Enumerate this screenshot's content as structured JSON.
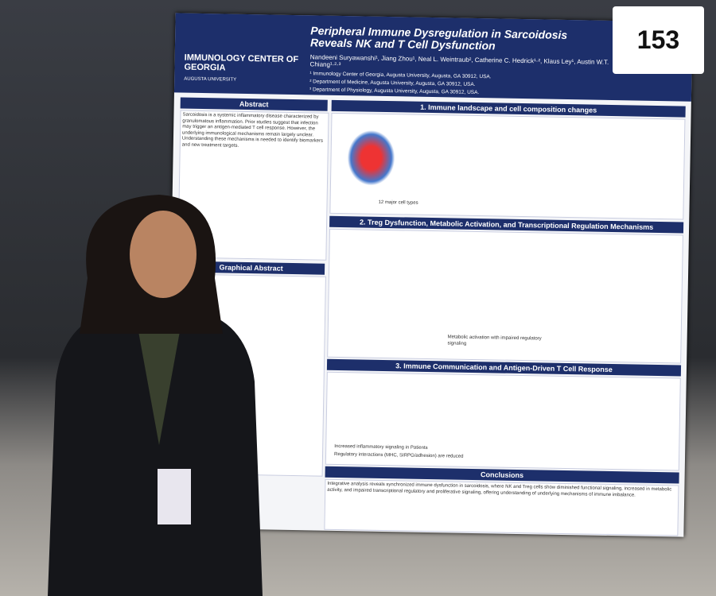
{
  "board_number": "153",
  "poster": {
    "logo": {
      "name": "IMMUNOLOGY CENTER OF GEORGIA",
      "sub": "AUGUSTA UNIVERSITY"
    },
    "title": "Peripheral Immune Dysregulation in Sarcoidosis Reveals NK and T Cell Dysfunction",
    "authors": "Nandeeni Suryawanshi¹, Jiang Zhou¹, Neal L. Weintraub², Catherine C. Hedrick¹·², Klaus Ley¹, Austin W.T. Chiang¹·²·³",
    "affiliations": [
      "¹ Immunology Center of Georgia, Augusta University, Augusta, GA 30912, USA.",
      "² Department of Medicine, Augusta University, Augusta, GA 30912, USA.",
      "³ Department of Physiology, Augusta University, Augusta, GA 30912, USA."
    ],
    "abstract_heading": "Abstract",
    "abstract_text": "Sarcoidosis is a systemic inflammatory disease characterized by granulomatous inflammation. Prior studies suggest that infection may trigger an antigen-mediated T cell response. However, the underlying immunological mechanisms remain largely unclear. Understanding these mechanisms is needed to identify biomarkers and new treatment targets.",
    "graphical_abstract_heading": "Graphical Abstract",
    "sections": [
      "1. Immune landscape and cell composition changes",
      "2. Treg Dysfunction, Metabolic Activation, and Transcriptional Regulation Mechanisms",
      "3. Immune Communication and Antigen-Driven T Cell Response"
    ],
    "notes": [
      "12 major cell types",
      "Metabolic activation with impaired regulatory signaling",
      "Increased inflammatory signaling in Patients",
      "Regulatory interactions (MHC, SIRPG/adhesion) are reduced"
    ],
    "conclusions_heading": "Conclusions",
    "conclusions_text": "Integrative analysis reveals synchronized immune dysfunction in sarcoidosis, where NK and Treg cells show diminished functional signaling, increased in metabolic activity, and impaired transcriptional regulatory and proliferative signaling, offering understanding of underlying mechanisms of immune imbalance."
  }
}
